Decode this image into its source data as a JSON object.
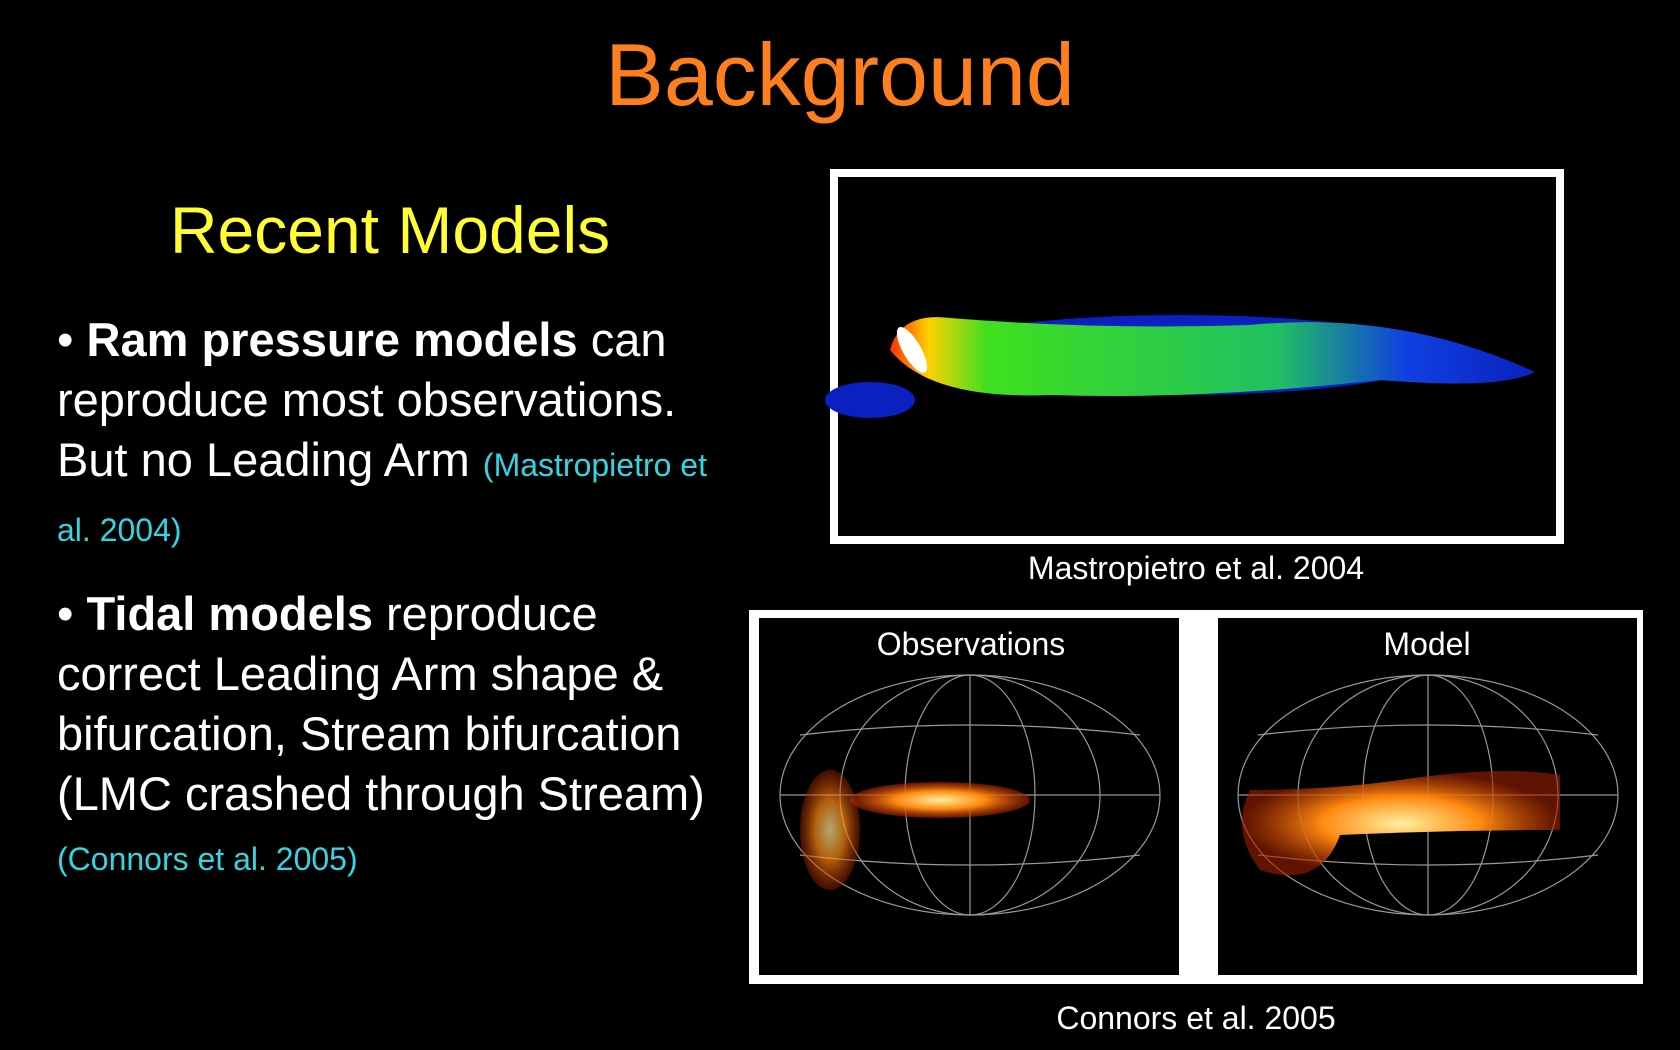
{
  "title": "Background",
  "section_title": "Recent Models",
  "bullets": [
    {
      "marker": "•",
      "bold": "Ram pressure models",
      "text": "can reproduce most observations. But no Leading Arm",
      "citation": "(Mastropietro et al. 2004)"
    },
    {
      "marker": "•",
      "bold": "Tidal models",
      "text": "reproduce correct Leading Arm shape & bifurcation, Stream bifurcation (LMC crashed through Stream)",
      "citation": "(Connors et al. 2005)"
    }
  ],
  "figures": [
    {
      "caption": "Mastropietro et al. 2004"
    },
    {
      "caption": "Connors et al. 2005",
      "panels": [
        "Observations",
        "Model"
      ]
    }
  ]
}
